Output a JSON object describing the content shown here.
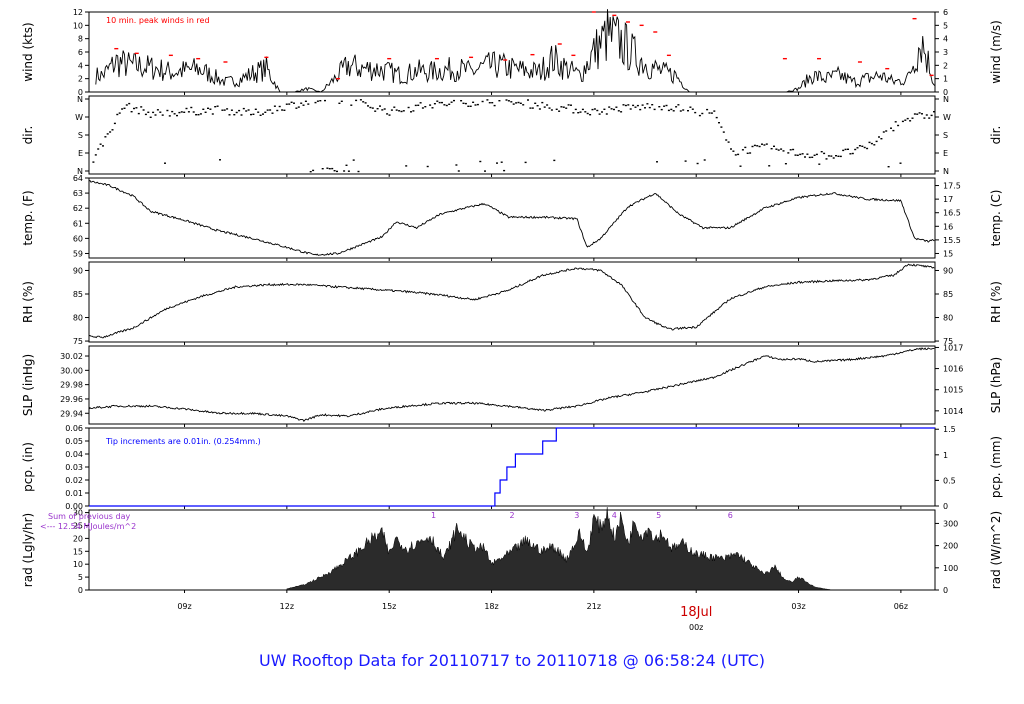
{
  "title": "UW Rooftop Data for 20110717  to  20110718 @ 06:58:24  (UTC)",
  "colors": {
    "title": "#1a1aff",
    "peak": "#ff0000",
    "rain": "#0000ff",
    "annotation": "#9933cc",
    "series": "#000000",
    "date_label": "#cc0000",
    "rad_fill": "#2b2b2b"
  },
  "chart_data": [
    {
      "type": "line",
      "ylabel": "wind (kts)",
      "ylabel_right": "wind (m/s)",
      "yticks": [
        "0",
        "2",
        "4",
        "6",
        "8",
        "10",
        "12"
      ],
      "yticks_right": [
        "0",
        "1",
        "2",
        "3",
        "4",
        "5",
        "6"
      ],
      "ylim": [
        0,
        12
      ],
      "annotation": "10 min. peak winds in red",
      "series": [
        {
          "values_hours_utc": [
            6.6,
            7.0,
            7.4,
            7.8,
            8.2,
            8.6,
            9.0,
            9.4,
            9.8,
            10.2,
            10.6,
            11.0,
            11.4,
            11.8,
            12.2,
            12.6,
            13.0,
            13.4,
            13.8,
            14.2,
            14.6,
            15.0,
            15.4,
            15.8,
            16.2,
            16.6,
            17.0,
            17.4,
            17.8,
            18.2,
            18.6,
            19.0,
            19.4,
            19.8,
            20.2,
            20.6,
            21.0,
            21.4,
            21.8,
            22.2,
            22.6,
            23.0,
            23.4,
            23.8,
            24.2,
            24.6,
            25.0,
            25.4,
            25.8,
            26.2,
            26.6,
            27.0,
            27.4,
            27.8,
            28.2,
            28.6,
            29.0,
            29.4,
            29.8,
            30.2,
            30.6,
            31.0
          ],
          "values": [
            2.5,
            4.5,
            4.0,
            3.8,
            3.5,
            3.0,
            3.2,
            3.5,
            2.5,
            1.5,
            1.8,
            2.8,
            3.5,
            0.0,
            0.0,
            0.5,
            0.0,
            2.0,
            4.0,
            3.5,
            3.5,
            3.0,
            2.5,
            3.2,
            3.0,
            3.3,
            3.5,
            3.0,
            3.8,
            4.0,
            3.5,
            3.2,
            3.0,
            5.0,
            3.5,
            2.5,
            6.0,
            8.5,
            7.5,
            5.5,
            4.0,
            3.0,
            2.5,
            0.0,
            0.0,
            0.0,
            0.0,
            0.0,
            0.0,
            0.0,
            0.0,
            0.5,
            2.5,
            2.0,
            2.5,
            1.5,
            2.0,
            2.5,
            1.5,
            2.0,
            8.0,
            1.0
          ]
        }
      ],
      "peaks": {
        "x": [
          7.0,
          7.6,
          8.6,
          9.4,
          10.2,
          11.4,
          13.5,
          15.0,
          16.4,
          17.4,
          18.4,
          19.2,
          20.0,
          20.4,
          21.0,
          21.6,
          22.0,
          22.4,
          22.8,
          23.2,
          26.6,
          27.6,
          28.8,
          29.6,
          30.4,
          30.9
        ],
        "y": [
          6.5,
          5.8,
          5.5,
          5.0,
          4.5,
          5.2,
          2.0,
          5.0,
          5.0,
          5.2,
          4.8,
          5.6,
          7.2,
          5.5,
          12.0,
          11.5,
          10.5,
          10.0,
          9.0,
          5.5,
          5.0,
          5.0,
          4.5,
          3.5,
          11.0,
          2.5
        ]
      }
    },
    {
      "type": "scatter",
      "ylabel": "dir.",
      "ylabel_right": "dir.",
      "yticks": [
        "N",
        "E",
        "S",
        "W",
        "N"
      ],
      "ylim": [
        0,
        360
      ]
    },
    {
      "type": "line",
      "ylabel": "temp. (F)",
      "ylabel_right": "temp. (C)",
      "yticks": [
        "59",
        "60",
        "61",
        "62",
        "63",
        "64"
      ],
      "yticks_right": [
        "15",
        "15.5",
        "16",
        "16.5",
        "17",
        "17.5"
      ],
      "ylim": [
        58.7,
        64
      ],
      "series": [
        {
          "values_hours_utc": [
            6.2,
            6.8,
            7.5,
            8.0,
            9.0,
            10.0,
            11.0,
            12.0,
            12.8,
            13.5,
            14.2,
            14.8,
            15.2,
            15.8,
            16.5,
            17.2,
            17.8,
            18.5,
            19.5,
            20.5,
            20.8,
            21.2,
            22.0,
            22.8,
            23.5,
            24.2,
            25.0,
            26.0,
            27.0,
            28.0,
            29.0,
            30.0,
            30.4,
            30.8,
            31.0
          ],
          "values": [
            63.8,
            63.5,
            62.8,
            61.8,
            61.2,
            60.5,
            60.0,
            59.4,
            58.9,
            59.0,
            59.6,
            60.1,
            61.1,
            60.7,
            61.6,
            62.0,
            62.3,
            61.4,
            61.4,
            61.3,
            59.4,
            60.0,
            62.1,
            63.0,
            61.6,
            60.7,
            60.7,
            62.0,
            62.7,
            63.0,
            62.6,
            62.5,
            60.0,
            59.8,
            59.9
          ]
        }
      ]
    },
    {
      "type": "line",
      "ylabel": "RH (%)",
      "ylabel_right": "RH (%)",
      "yticks": [
        "75",
        "80",
        "85",
        "90"
      ],
      "ylim": [
        74.8,
        91.8
      ],
      "series": [
        {
          "values_hours_utc": [
            6.2,
            6.6,
            7.5,
            8.5,
            9.5,
            10.5,
            11.5,
            12.5,
            13.5,
            14.5,
            15.5,
            16.5,
            17.5,
            18.5,
            19.5,
            20.5,
            21.2,
            21.8,
            22.5,
            23.2,
            24.0,
            25.0,
            26.0,
            27.0,
            28.0,
            29.0,
            29.8,
            30.2,
            30.6,
            31.0
          ],
          "values": [
            76.0,
            75.8,
            77.8,
            82.0,
            84.5,
            86.5,
            87.0,
            87.0,
            86.5,
            86.0,
            85.5,
            84.8,
            83.8,
            85.8,
            89.0,
            90.5,
            90.0,
            87.0,
            80.0,
            77.5,
            78.0,
            84.0,
            86.5,
            87.5,
            87.8,
            88.0,
            89.0,
            91.3,
            91.0,
            90.5
          ]
        }
      ]
    },
    {
      "type": "line",
      "ylabel": "SLP (inHg)",
      "ylabel_right": "SLP (hPa)",
      "yticks": [
        "29.94",
        "29.96",
        "29.98",
        "30.00",
        "30.02"
      ],
      "yticks_right": [
        "1014",
        "1015",
        "1016",
        "1017"
      ],
      "ylim": [
        29.925,
        30.034
      ],
      "series": [
        {
          "values_hours_utc": [
            6.2,
            7.0,
            8.0,
            9.0,
            10.0,
            11.0,
            12.0,
            12.5,
            13.0,
            13.8,
            14.8,
            15.5,
            16.5,
            17.5,
            18.5,
            19.5,
            20.5,
            21.5,
            22.5,
            23.5,
            24.5,
            25.5,
            26.0,
            26.5,
            27.0,
            27.5,
            28.5,
            29.5,
            30.5,
            31.0
          ],
          "values": [
            29.947,
            29.95,
            29.95,
            29.946,
            29.94,
            29.94,
            29.936,
            29.93,
            29.938,
            29.936,
            29.946,
            29.95,
            29.954,
            29.954,
            29.95,
            29.944,
            29.95,
            29.962,
            29.97,
            29.98,
            29.99,
            30.01,
            30.02,
            30.015,
            30.016,
            30.012,
            30.015,
            30.02,
            30.03,
            30.03
          ]
        }
      ]
    },
    {
      "type": "line",
      "ylabel": "pcp. (in)",
      "ylabel_right": "pcp. (mm)",
      "yticks": [
        "0.00",
        "0.01",
        "0.02",
        "0.03",
        "0.04",
        "0.05",
        "0.06"
      ],
      "yticks_right": [
        "0",
        "0.5",
        "1",
        "1.5"
      ],
      "ylim": [
        0,
        0.06
      ],
      "annotation": "Tip increments are 0.01in. (0.254mm.)",
      "series": [
        {
          "values_hours_utc": [
            6.2,
            18.1,
            18.1,
            18.25,
            18.25,
            18.45,
            18.45,
            18.7,
            18.7,
            19.5,
            19.5,
            19.9,
            19.9,
            31.0
          ],
          "values": [
            0.0,
            0.0,
            0.01,
            0.01,
            0.02,
            0.02,
            0.03,
            0.03,
            0.04,
            0.04,
            0.05,
            0.05,
            0.06,
            0.06
          ]
        }
      ],
      "rain_hour_markers": {
        "hours": [
          16.3,
          18.6,
          20.5,
          21.6,
          22.9,
          25.0
        ],
        "labels": [
          "1",
          "2",
          "3",
          "4",
          "5",
          "6"
        ]
      }
    },
    {
      "type": "area",
      "ylabel": "rad (Lgly/hr)",
      "ylabel_right": "rad (W/m^2)",
      "yticks": [
        "0",
        "5",
        "10",
        "15",
        "20",
        "25",
        "30"
      ],
      "yticks_right": [
        "0",
        "100",
        "200",
        "300"
      ],
      "ylim": [
        0,
        31
      ],
      "annotation_line1": "Sum of previous day",
      "annotation_line2": "<--- 12.54 MJoules/m^2",
      "series": [
        {
          "values_hours_utc": [
            12.0,
            12.5,
            13.0,
            13.5,
            14.0,
            14.5,
            14.8,
            15.0,
            15.2,
            15.5,
            15.8,
            16.2,
            16.6,
            17.0,
            17.4,
            17.8,
            18.0,
            18.5,
            19.0,
            19.5,
            19.8,
            20.2,
            20.6,
            20.8,
            21.0,
            21.2,
            21.4,
            21.6,
            21.8,
            22.0,
            22.2,
            22.4,
            22.6,
            22.8,
            23.0,
            23.3,
            23.6,
            24.0,
            24.4,
            24.8,
            25.2,
            25.6,
            26.0,
            26.3,
            26.6,
            26.8,
            27.0,
            27.5,
            28.0
          ],
          "values": [
            0.5,
            2.0,
            5.0,
            9.0,
            14.0,
            20.0,
            22.0,
            14.0,
            20.0,
            16.0,
            18.0,
            21.0,
            12.0,
            24.0,
            17.0,
            16.0,
            10.0,
            14.0,
            19.0,
            15.0,
            17.0,
            12.0,
            22.0,
            14.0,
            28.0,
            24.0,
            30.0,
            20.0,
            28.0,
            18.0,
            27.0,
            21.0,
            24.0,
            20.0,
            22.0,
            16.0,
            18.0,
            14.0,
            13.0,
            12.0,
            14.0,
            10.0,
            6.0,
            9.0,
            4.0,
            3.0,
            5.0,
            1.0,
            0.0
          ]
        }
      ]
    }
  ],
  "xaxis": {
    "range_hours_utc": [
      6.2,
      31.0
    ],
    "tick_hours_utc": [
      9,
      12,
      15,
      18,
      21,
      24,
      27,
      30
    ],
    "tick_labels": [
      "09z",
      "12z",
      "15z",
      "18z",
      "21z",
      "00z",
      "03z",
      "06z"
    ],
    "date_label": "18Jul"
  }
}
